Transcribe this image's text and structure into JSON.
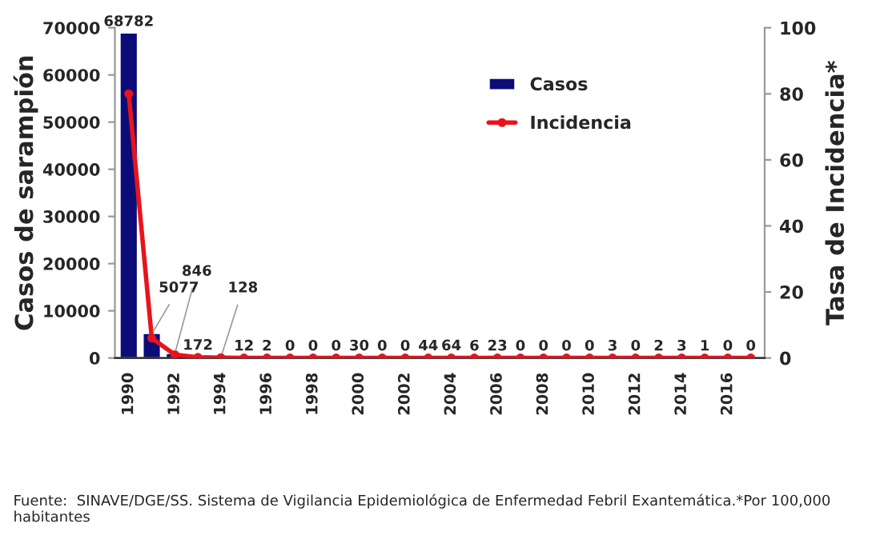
{
  "chart_data": {
    "type": "bar",
    "categories": [
      "1990",
      null,
      "1992",
      null,
      "1994",
      null,
      "1996",
      null,
      "1998",
      null,
      "2000",
      null,
      "2002",
      null,
      "2004",
      null,
      "2006",
      null,
      "2008",
      null,
      "2010",
      null,
      "2012",
      null,
      "2014",
      null,
      "2016",
      null
    ],
    "series": [
      {
        "name": "Casos",
        "color": "#0c0c78",
        "values": [
          68782,
          5077,
          846,
          172,
          128,
          12,
          2,
          0,
          0,
          0,
          30,
          0,
          0,
          44,
          64,
          6,
          23,
          0,
          0,
          0,
          0,
          3,
          0,
          2,
          3,
          1,
          0,
          0
        ],
        "value_labels": [
          "68782",
          "5077",
          "846",
          "172",
          "128",
          "12",
          "2",
          "0",
          "0",
          "0",
          "30",
          "0",
          "0",
          "44",
          "64",
          "6",
          "23",
          "0",
          "0",
          "0",
          "0",
          "3",
          "0",
          "2",
          "3",
          "1",
          "0",
          "0"
        ]
      },
      {
        "name": "Incidencia",
        "type": "line",
        "axis": "y2",
        "color": "#e8141c",
        "marker": "circle",
        "values": [
          80,
          6,
          1,
          0.2,
          0.1,
          0,
          0,
          0,
          0,
          0,
          0,
          0,
          0,
          0,
          0,
          0,
          0,
          0,
          0,
          0,
          0,
          0,
          0,
          0,
          0,
          0,
          0,
          0
        ]
      }
    ],
    "ylabel": "Casos de sarampión",
    "y2label": "Tasa de Incidencia*",
    "ylim": [
      0,
      70000
    ],
    "yticks": [
      0,
      10000,
      20000,
      30000,
      40000,
      50000,
      60000,
      70000
    ],
    "y2lim": [
      0,
      100
    ],
    "y2ticks": [
      0,
      20,
      40,
      60,
      80,
      100
    ],
    "grid": false,
    "legend": "top right",
    "annotations": [
      "Fuente:  SINAVE/DGE/SS. Sistema de Vigilancia Epidemiológica de Enfermedad Febril Exantemática.*Por 100,000 habitantes"
    ]
  }
}
